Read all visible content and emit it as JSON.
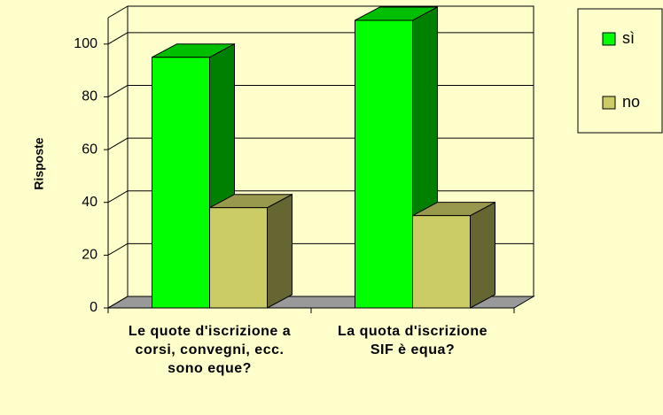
{
  "chart_data": {
    "type": "bar3d",
    "y_label": "Risposte",
    "categories": [
      "Le quote d'iscrizione a corsi, convegni, ecc. sono eque?",
      "La quota d'iscrizione SIF è equa?"
    ],
    "series": [
      {
        "name": "sì",
        "color": "#00ff00",
        "values": [
          95,
          109
        ]
      },
      {
        "name": "no",
        "color": "#cccc66",
        "values": [
          38,
          35
        ]
      }
    ],
    "ylim": [
      0,
      110
    ],
    "yticks": [
      0,
      20,
      40,
      60,
      80,
      100
    ],
    "grid": true,
    "legend": "right"
  }
}
